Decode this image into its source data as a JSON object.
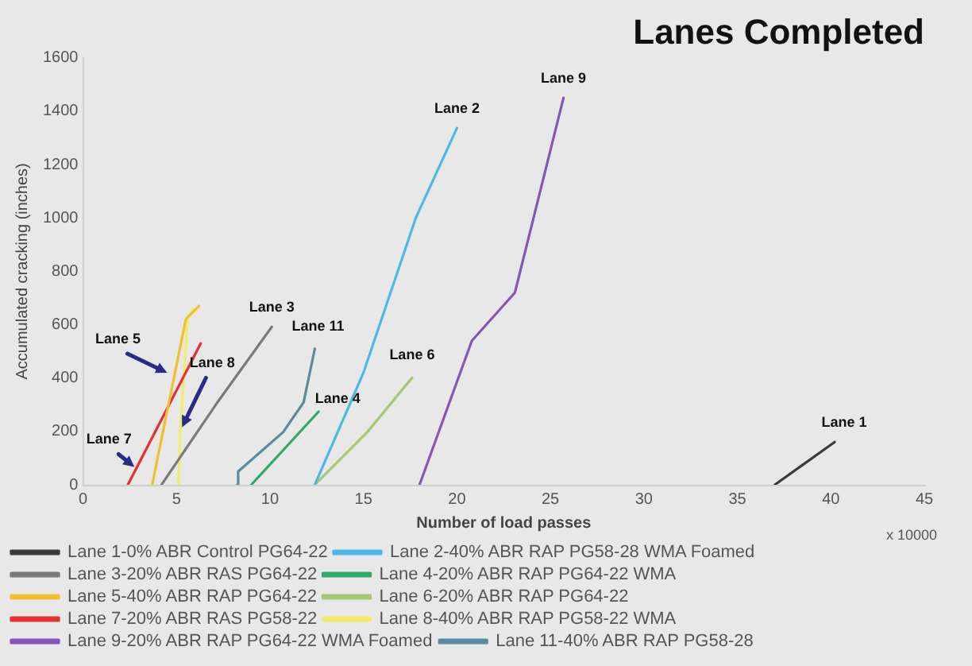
{
  "chart_data": {
    "type": "line",
    "title": "Lanes Completed",
    "xlabel": "Number of load passes",
    "ylabel": "Accumulated cracking (inches)",
    "xlim": [
      0,
      45
    ],
    "xticks": [
      0,
      5,
      10,
      15,
      20,
      25,
      30,
      35,
      40,
      45
    ],
    "ylim": [
      0,
      1600
    ],
    "yticks": [
      0,
      200,
      400,
      600,
      800,
      1000,
      1200,
      1400,
      1600
    ],
    "grid": false,
    "legend": "bottom",
    "marker": "none",
    "line_style": "solid",
    "series": [
      {
        "name": "Lane 1-0% ABR Control PG64-22",
        "color": "#3a3a3a",
        "x": [
          37,
          40.2
        ],
        "values": [
          0,
          160
        ]
      },
      {
        "name": "Lane 2-40% ABR RAP PG58-28 WMA Foamed",
        "color": "#4db8e8",
        "x": [
          12.4,
          15,
          17.8,
          20
        ],
        "values": [
          0,
          420,
          1000,
          1337
        ]
      },
      {
        "name": "Lane 3-20% ABR RAS PG64-22",
        "color": "#7a7a7a",
        "x": [
          4.2,
          7.1,
          10.1
        ],
        "values": [
          0,
          300,
          592
        ]
      },
      {
        "name": "Lane 4-20% ABR RAP PG64-22 WMA",
        "color": "#2eaa6a",
        "x": [
          9,
          12.6
        ],
        "values": [
          0,
          274
        ]
      },
      {
        "name": "Lane 5-40% ABR RAP PG64-22",
        "color": "#f0c030",
        "x": [
          3.7,
          5.5,
          6.2
        ],
        "values": [
          0,
          620,
          670
        ]
      },
      {
        "name": "Lane 6-20% ABR RAP PG64-22",
        "color": "#a8c870",
        "x": [
          12.4,
          15.2,
          17.6
        ],
        "values": [
          0,
          197,
          401
        ]
      },
      {
        "name": "Lane 7-20% ABR RAS PG58-22",
        "color": "#e83030",
        "x": [
          2.4,
          6.3
        ],
        "values": [
          0,
          530
        ]
      },
      {
        "name": "Lane 8-40% ABR RAP PG58-22 WMA",
        "color": "#f2ec6a",
        "x": [
          5.1,
          5.2,
          5.6,
          5.9
        ],
        "values": [
          0,
          200,
          630,
          660
        ]
      },
      {
        "name": "Lane 9-20% ABR RAP PG64-22 WMA Foamed",
        "color": "#8855bb",
        "x": [
          18,
          20.8,
          23.1,
          25.7
        ],
        "values": [
          0,
          540,
          720,
          1450
        ]
      },
      {
        "name": "Lane 11-40% ABR RAP PG58-28",
        "color": "#5a8aa0",
        "x": [
          8.25,
          8.3,
          10.7,
          11.8,
          12.4
        ],
        "values": [
          0,
          50,
          197,
          309,
          510
        ]
      }
    ],
    "annotations": [
      {
        "text": "Lane 1",
        "x": 40.2,
        "y": 160
      },
      {
        "text": "Lane 2",
        "x": 20,
        "y": 1337
      },
      {
        "text": "Lane 3",
        "x": 10.1,
        "y": 592
      },
      {
        "text": "Lane 4",
        "x": 12.6,
        "y": 274
      },
      {
        "text": "Lane 5",
        "x": 4.5,
        "y": 420
      },
      {
        "text": "Lane 6",
        "x": 17.6,
        "y": 401
      },
      {
        "text": "Lane 7",
        "x": 2.75,
        "y": 67
      },
      {
        "text": "Lane 8",
        "x": 5.3,
        "y": 216
      },
      {
        "text": "Lane 9",
        "x": 25.7,
        "y": 1450
      },
      {
        "text": "Lane 11",
        "x": 12.4,
        "y": 510
      },
      "x 10000"
    ]
  }
}
